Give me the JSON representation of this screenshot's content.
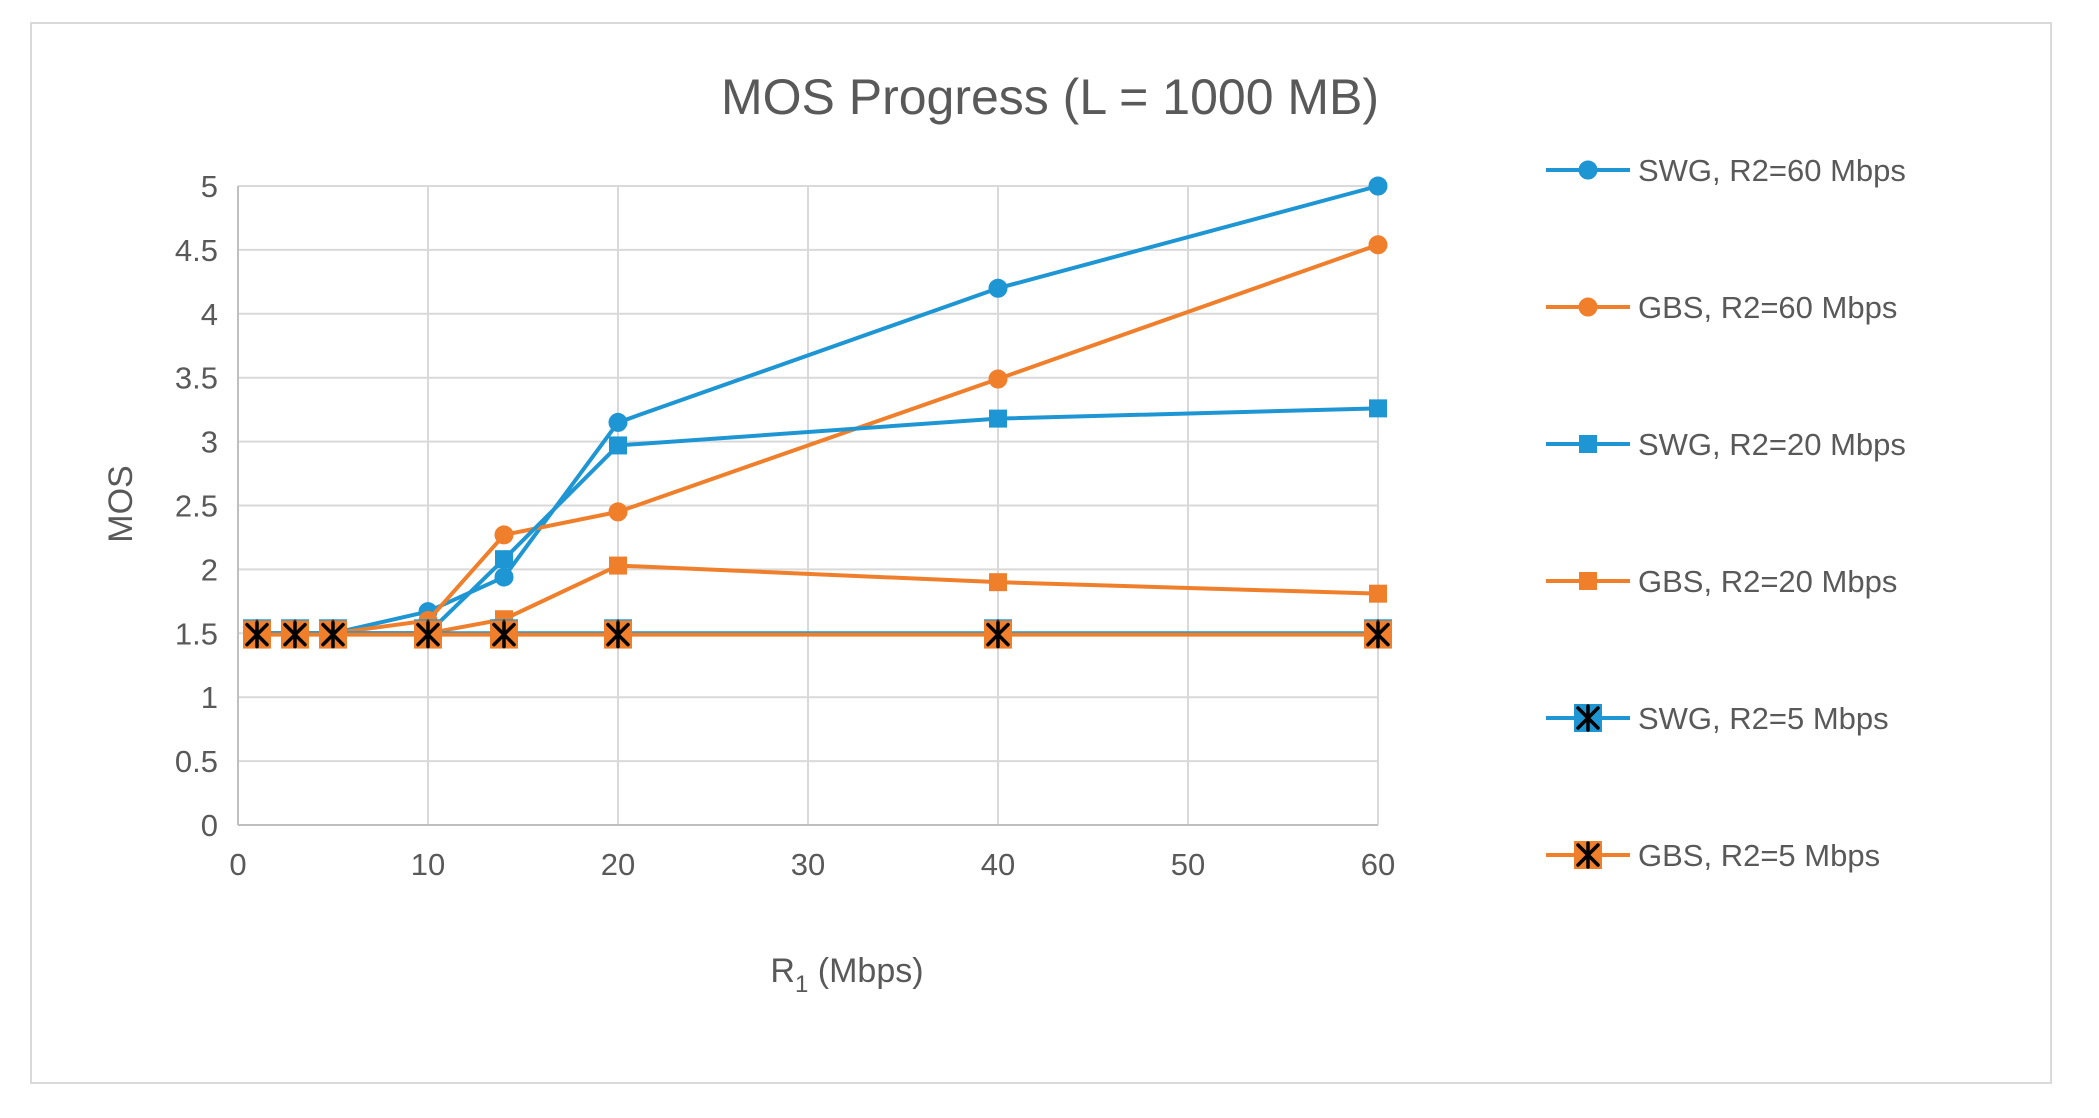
{
  "chart_data": {
    "type": "line",
    "title": "MOS Progress (L = 1000 MB)",
    "xlabel_main": "R",
    "xlabel_sub": "1",
    "xlabel_rest": " (Mbps)",
    "ylabel": "MOS",
    "xlim": [
      0,
      60
    ],
    "ylim": [
      0,
      5
    ],
    "xticks": [
      "0",
      "10",
      "20",
      "30",
      "40",
      "50",
      "60"
    ],
    "yticks": [
      "0",
      "0.5",
      "1",
      "1.5",
      "2",
      "2.5",
      "3",
      "3.5",
      "4",
      "4.5",
      "5"
    ],
    "grid": true,
    "legend_position": "right",
    "series": [
      {
        "name": "SWG, R2=60 Mbps",
        "color": "#1f96d4",
        "marker": "circle",
        "points": [
          [
            1,
            1.5
          ],
          [
            3,
            1.5
          ],
          [
            5,
            1.5
          ],
          [
            10,
            1.67
          ],
          [
            14,
            1.94
          ],
          [
            20,
            3.15
          ],
          [
            40,
            4.2
          ],
          [
            60,
            5.0
          ]
        ]
      },
      {
        "name": "GBS, R2=60 Mbps",
        "color": "#f07f2c",
        "marker": "circle",
        "points": [
          [
            1,
            1.5
          ],
          [
            3,
            1.5
          ],
          [
            5,
            1.5
          ],
          [
            10,
            1.6
          ],
          [
            14,
            2.27
          ],
          [
            20,
            2.45
          ],
          [
            40,
            3.49
          ],
          [
            60,
            4.54
          ]
        ]
      },
      {
        "name": "SWG, R2=20 Mbps",
        "color": "#1f96d4",
        "marker": "square",
        "points": [
          [
            1,
            1.5
          ],
          [
            3,
            1.5
          ],
          [
            5,
            1.5
          ],
          [
            10,
            1.5
          ],
          [
            14,
            2.08
          ],
          [
            20,
            2.97
          ],
          [
            40,
            3.18
          ],
          [
            60,
            3.26
          ]
        ]
      },
      {
        "name": "GBS, R2=20 Mbps",
        "color": "#f07f2c",
        "marker": "square",
        "points": [
          [
            1,
            1.5
          ],
          [
            3,
            1.5
          ],
          [
            5,
            1.5
          ],
          [
            10,
            1.5
          ],
          [
            14,
            1.61
          ],
          [
            20,
            2.03
          ],
          [
            40,
            1.9
          ],
          [
            60,
            1.81
          ]
        ]
      },
      {
        "name": "SWG, R2=5 Mbps",
        "color": "#1f96d4",
        "marker": "star",
        "points": [
          [
            1,
            1.5
          ],
          [
            3,
            1.5
          ],
          [
            5,
            1.5
          ],
          [
            10,
            1.5
          ],
          [
            14,
            1.5
          ],
          [
            20,
            1.5
          ],
          [
            40,
            1.5
          ],
          [
            60,
            1.5
          ]
        ]
      },
      {
        "name": "GBS, R2=5 Mbps",
        "color": "#f07f2c",
        "marker": "star",
        "points": [
          [
            1,
            1.49
          ],
          [
            3,
            1.49
          ],
          [
            5,
            1.49
          ],
          [
            10,
            1.49
          ],
          [
            14,
            1.49
          ],
          [
            20,
            1.49
          ],
          [
            40,
            1.49
          ],
          [
            60,
            1.49
          ]
        ]
      }
    ]
  }
}
